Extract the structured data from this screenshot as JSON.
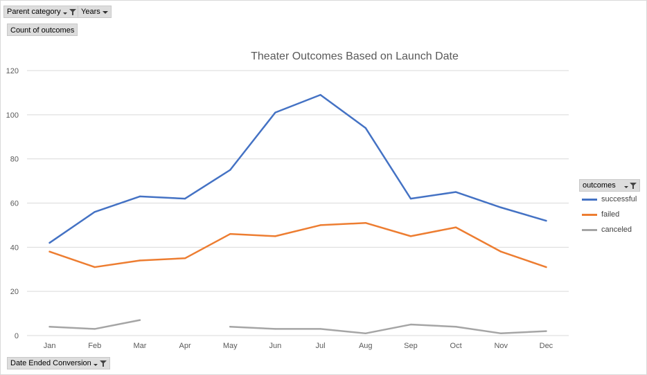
{
  "filters": {
    "parent_category": "Parent category",
    "years": "Years",
    "values_field": "Count of outcomes",
    "axis_field": "Date Ended Conversion"
  },
  "legend": {
    "title": "outcomes"
  },
  "colors": {
    "successful": "#4472C4",
    "failed": "#ED7D31",
    "canceled": "#A5A5A5",
    "grid": "#d9d9d9",
    "tick_text": "#595959",
    "title_text": "#595959"
  },
  "chart_data": {
    "type": "line",
    "title": "Theater Outcomes Based on Launch Date",
    "xlabel": "",
    "ylabel": "",
    "categories": [
      "Jan",
      "Feb",
      "Mar",
      "Apr",
      "May",
      "Jun",
      "Jul",
      "Aug",
      "Sep",
      "Oct",
      "Nov",
      "Dec"
    ],
    "ylim": [
      0,
      120
    ],
    "yticks": [
      0,
      20,
      40,
      60,
      80,
      100,
      120
    ],
    "grid": true,
    "legend_position": "right",
    "series": [
      {
        "name": "successful",
        "values": [
          42,
          56,
          63,
          62,
          75,
          101,
          109,
          94,
          62,
          65,
          58,
          52
        ]
      },
      {
        "name": "failed",
        "values": [
          38,
          31,
          34,
          35,
          46,
          45,
          50,
          51,
          45,
          49,
          38,
          31
        ]
      },
      {
        "name": "canceled",
        "values": [
          4,
          3,
          7,
          null,
          4,
          3,
          3,
          1,
          5,
          4,
          1,
          2
        ]
      }
    ]
  }
}
